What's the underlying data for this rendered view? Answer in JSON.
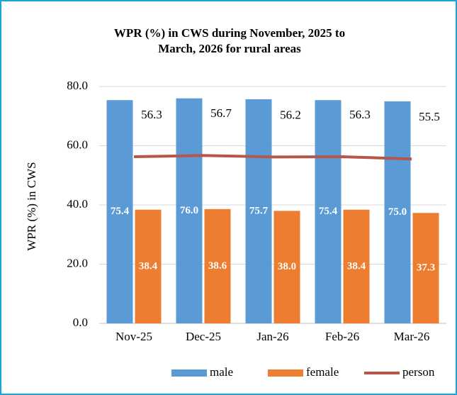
{
  "chart_data": {
    "type": "bar_line",
    "title": "WPR (%) in CWS during November, 2025 to March, 2026 for rural areas",
    "y_label": "WPR (%) in CWS",
    "categories": [
      "Nov-25",
      "Dec-25",
      "Jan-26",
      "Feb-26",
      "Mar-26"
    ],
    "series": [
      {
        "name": "male",
        "type": "bar",
        "color": "#5b9bd5",
        "values": [
          75.4,
          76.0,
          75.7,
          75.4,
          75.0
        ],
        "value_labels": [
          "75.4",
          "76.0",
          "75.7",
          "75.4",
          "75.0"
        ]
      },
      {
        "name": "female",
        "type": "bar",
        "color": "#ed7d31",
        "values": [
          38.4,
          38.6,
          38.0,
          38.4,
          37.3
        ],
        "value_labels": [
          "38.4",
          "38.6",
          "38.0",
          "38.4",
          "37.3"
        ]
      },
      {
        "name": "person",
        "type": "line",
        "color": "#b5574b",
        "values": [
          56.3,
          56.7,
          56.2,
          56.3,
          55.5
        ],
        "value_labels": [
          "56.3",
          "56.7",
          "56.2",
          "56.3",
          "55.5"
        ]
      }
    ],
    "ylim": [
      0,
      80
    ],
    "yticks": [
      {
        "value": 0,
        "label": "0.0"
      },
      {
        "value": 20,
        "label": "20.0"
      },
      {
        "value": 40,
        "label": "40.0"
      },
      {
        "value": 60,
        "label": "60.0"
      },
      {
        "value": 80,
        "label": "80.0"
      }
    ],
    "grid": true,
    "legend": "bottom"
  }
}
